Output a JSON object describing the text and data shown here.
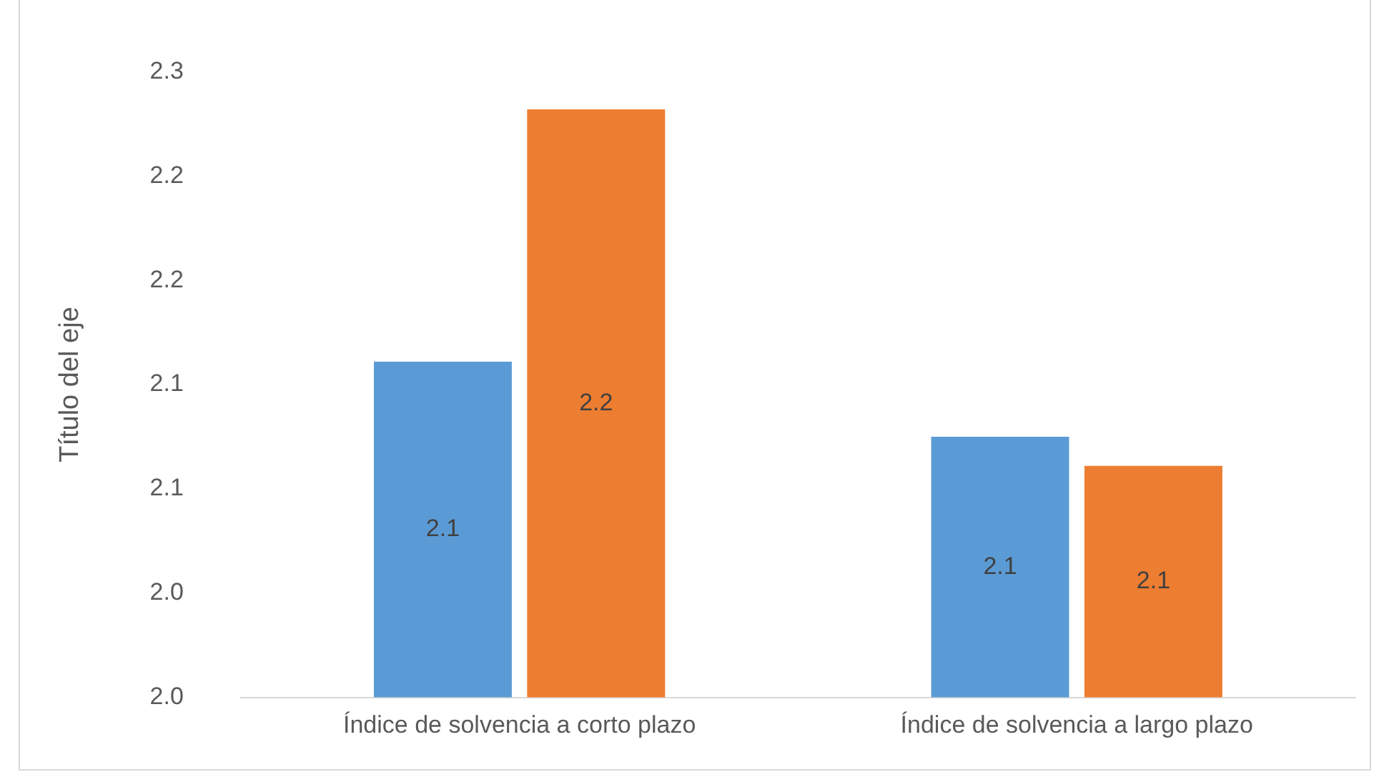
{
  "chart_data": {
    "type": "bar",
    "ylabel": "Título del eje",
    "categories": [
      "Índice de solvencia a corto plazo",
      "Índice de solvencia a largo plazo"
    ],
    "series": [
      {
        "color": "#5b9bd5",
        "values": [
          2.121,
          2.085
        ],
        "value_labels": [
          "2.1",
          "2.1"
        ]
      },
      {
        "color": "#ed7d31",
        "values": [
          2.242,
          2.071
        ],
        "value_labels": [
          "2.2",
          "2.1"
        ]
      }
    ],
    "ylim": [
      1.96,
      2.26
    ],
    "yticks": [
      {
        "value": 1.96,
        "label": "2.0"
      },
      {
        "value": 2.01,
        "label": "2.0"
      },
      {
        "value": 2.06,
        "label": "2.1"
      },
      {
        "value": 2.11,
        "label": "2.1"
      },
      {
        "value": 2.16,
        "label": "2.2"
      },
      {
        "value": 2.21,
        "label": "2.2"
      },
      {
        "value": 2.26,
        "label": "2.3"
      }
    ],
    "grid": false,
    "legend": false
  }
}
